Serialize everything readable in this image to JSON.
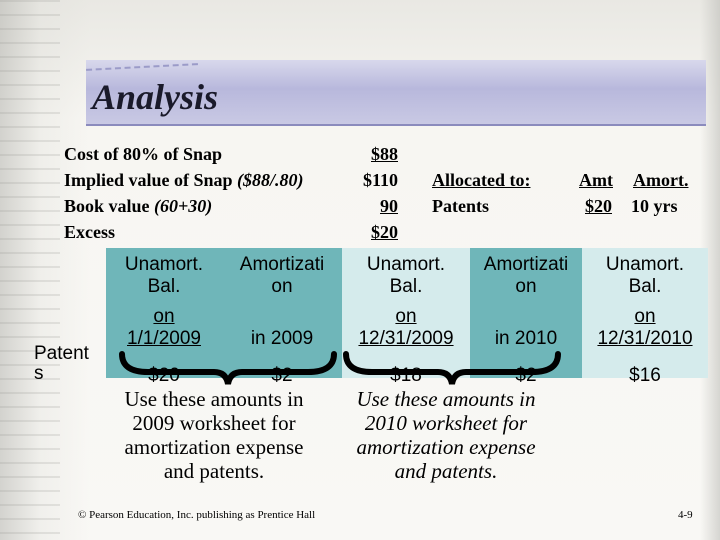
{
  "slide": {
    "title": "Analysis",
    "footer_left": "© Pearson Education, Inc. publishing as Prentice Hall",
    "footer_right": "4-9"
  },
  "calc": {
    "rows": [
      {
        "label": "Cost of 80% of Snap",
        "label_extra": "",
        "value": "$88"
      },
      {
        "label": "Implied value of Snap ",
        "label_extra": "($88/.80)",
        "value": "$110"
      },
      {
        "label": "Book value ",
        "label_extra": "(60+30)",
        "value": "90"
      },
      {
        "label": "Excess",
        "label_extra": "",
        "value": "$20"
      }
    ],
    "allocated_header": "Allocated to:",
    "allocated_item": "Patents",
    "amt_header": "Amt",
    "amort_header": "Amort.",
    "amt_value": "$20",
    "amort_value": "10 yrs"
  },
  "table": {
    "row_label": "Patent s",
    "row_label_line1": "Patent",
    "row_label_line2": "s",
    "columns": [
      {
        "h1": "Unamort.",
        "h2": "Bal.",
        "h3": "on",
        "h4": "1/1/2009",
        "value": "$20"
      },
      {
        "h1": "Amortizati",
        "h2": "on",
        "h3": "",
        "h4": "in 2009",
        "value": "$2"
      },
      {
        "h1": "Unamort.",
        "h2": "Bal.",
        "h3": "on",
        "h4": "12/31/2009",
        "value": "$18"
      },
      {
        "h1": "Amortizati",
        "h2": "on",
        "h3": "",
        "h4": "in 2010",
        "value": "$2"
      },
      {
        "h1": "Unamort.",
        "h2": "Bal.",
        "h3": "on",
        "h4": "12/31/2010",
        "value": "$16"
      }
    ]
  },
  "notes": {
    "left": [
      "Use these amounts in",
      "2009 worksheet for",
      "amortization expense",
      "and patents."
    ],
    "right": [
      "Use these amounts in",
      "2010 worksheet for",
      "amortization expense",
      "and patents."
    ]
  },
  "colors": {
    "teal": "#6fb6b9",
    "light_teal": "#d5ebec",
    "title_band": "#b8b8dc"
  }
}
